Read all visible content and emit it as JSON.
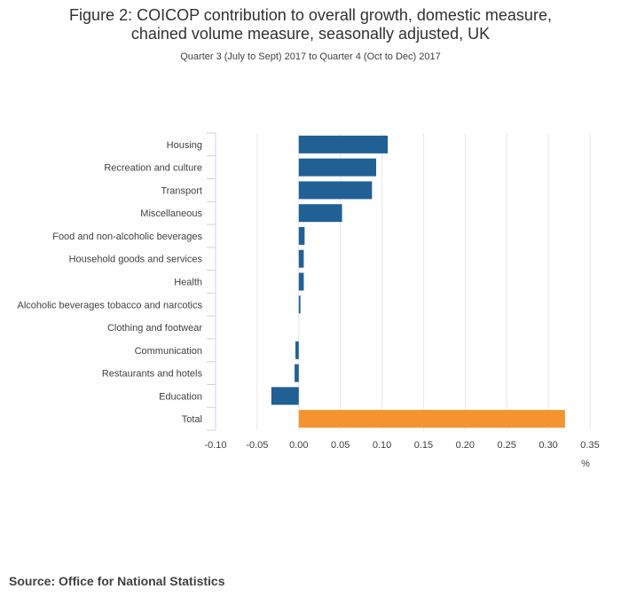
{
  "chart_data": {
    "type": "bar",
    "orientation": "horizontal",
    "title_line1": "Figure 2: COICOP contribution to overall growth, domestic measure,",
    "title_line2": "chained volume measure, seasonally adjusted, UK",
    "subtitle": "Quarter 3 (July to Sept) 2017 to Quarter 4 (Oct to Dec) 2017",
    "categories": [
      "Housing",
      "Recreation and culture",
      "Transport",
      "Miscellaneous",
      "Food and non-alcoholic beverages",
      "Household goods and services",
      "Health",
      "Alcoholic beverages tobacco and narcotics",
      "Clothing and footwear",
      "Communication",
      "Restaurants and hotels",
      "Education",
      "Total"
    ],
    "values": [
      0.107,
      0.093,
      0.088,
      0.052,
      0.007,
      0.006,
      0.006,
      0.002,
      0.0,
      -0.004,
      -0.005,
      -0.033,
      0.32
    ],
    "bar_colors": [
      "#206095",
      "#206095",
      "#206095",
      "#206095",
      "#206095",
      "#206095",
      "#206095",
      "#206095",
      "#206095",
      "#206095",
      "#206095",
      "#206095",
      "#F39431"
    ],
    "xlim": [
      -0.1,
      0.35
    ],
    "xticks": [
      "-0.10",
      "-0.05",
      "0.00",
      "0.05",
      "0.10",
      "0.15",
      "0.20",
      "0.25",
      "0.30",
      "0.35"
    ],
    "xlabel": "%",
    "ylabel": "",
    "grid": true
  },
  "source": "Source: Office for National Statistics"
}
